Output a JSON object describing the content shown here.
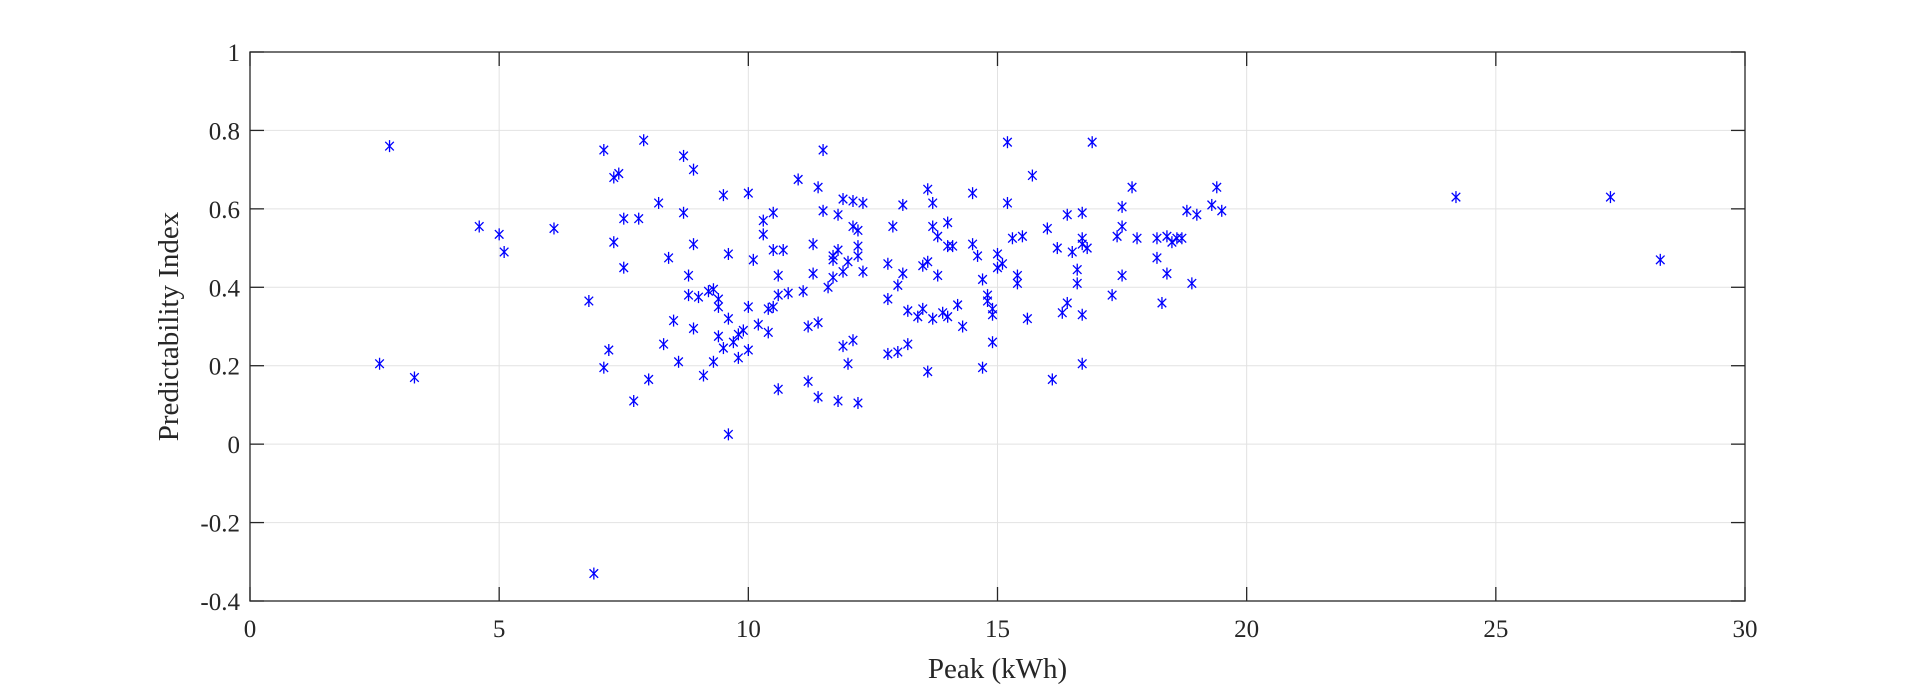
{
  "chart_data": {
    "type": "scatter",
    "title": "",
    "xlabel": "Peak (kWh)",
    "ylabel": "Predictability Index",
    "xlim": [
      0,
      30
    ],
    "ylim": [
      -0.4,
      1
    ],
    "xticks": [
      0,
      5,
      10,
      15,
      20,
      25,
      30
    ],
    "xtick_labels": [
      "0",
      "5",
      "10",
      "15",
      "20",
      "25",
      "30"
    ],
    "yticks": [
      -0.4,
      -0.2,
      0,
      0.2,
      0.4,
      0.6,
      0.8,
      1
    ],
    "ytick_labels": [
      "-0.4",
      "-0.2",
      "0",
      "0.2",
      "0.4",
      "0.6",
      "0.8",
      "1"
    ],
    "grid": true,
    "marker": "*",
    "marker_color": "#0000ff",
    "series": [
      {
        "points": [
          [
            2.6,
            0.205
          ],
          [
            2.8,
            0.76
          ],
          [
            3.3,
            0.17
          ],
          [
            4.6,
            0.555
          ],
          [
            5.0,
            0.535
          ],
          [
            5.1,
            0.49
          ],
          [
            6.1,
            0.55
          ],
          [
            6.8,
            0.365
          ],
          [
            6.9,
            -0.33
          ],
          [
            7.1,
            0.75
          ],
          [
            7.1,
            0.195
          ],
          [
            7.2,
            0.24
          ],
          [
            7.3,
            0.68
          ],
          [
            7.4,
            0.69
          ],
          [
            7.3,
            0.515
          ],
          [
            7.5,
            0.575
          ],
          [
            7.5,
            0.45
          ],
          [
            7.7,
            0.11
          ],
          [
            7.8,
            0.575
          ],
          [
            7.9,
            0.775
          ],
          [
            8.0,
            0.165
          ],
          [
            8.2,
            0.615
          ],
          [
            8.3,
            0.255
          ],
          [
            8.4,
            0.475
          ],
          [
            8.5,
            0.315
          ],
          [
            8.6,
            0.21
          ],
          [
            8.7,
            0.59
          ],
          [
            8.7,
            0.735
          ],
          [
            8.8,
            0.38
          ],
          [
            8.8,
            0.43
          ],
          [
            8.9,
            0.51
          ],
          [
            8.9,
            0.7
          ],
          [
            8.9,
            0.295
          ],
          [
            9.0,
            0.375
          ],
          [
            9.1,
            0.175
          ],
          [
            9.2,
            0.39
          ],
          [
            9.3,
            0.395
          ],
          [
            9.3,
            0.21
          ],
          [
            9.4,
            0.37
          ],
          [
            9.4,
            0.35
          ],
          [
            9.4,
            0.275
          ],
          [
            9.5,
            0.245
          ],
          [
            9.5,
            0.635
          ],
          [
            9.6,
            0.025
          ],
          [
            9.6,
            0.485
          ],
          [
            9.6,
            0.32
          ],
          [
            9.7,
            0.26
          ],
          [
            9.8,
            0.22
          ],
          [
            9.8,
            0.28
          ],
          [
            9.9,
            0.29
          ],
          [
            10.0,
            0.64
          ],
          [
            10.0,
            0.35
          ],
          [
            10.0,
            0.24
          ],
          [
            10.1,
            0.47
          ],
          [
            10.2,
            0.305
          ],
          [
            10.3,
            0.535
          ],
          [
            10.3,
            0.57
          ],
          [
            10.4,
            0.285
          ],
          [
            10.4,
            0.345
          ],
          [
            10.5,
            0.35
          ],
          [
            10.5,
            0.59
          ],
          [
            10.5,
            0.495
          ],
          [
            10.6,
            0.14
          ],
          [
            10.6,
            0.43
          ],
          [
            10.6,
            0.38
          ],
          [
            10.7,
            0.495
          ],
          [
            10.8,
            0.385
          ],
          [
            11.0,
            0.675
          ],
          [
            11.1,
            0.39
          ],
          [
            11.2,
            0.3
          ],
          [
            11.2,
            0.16
          ],
          [
            11.3,
            0.51
          ],
          [
            11.3,
            0.435
          ],
          [
            11.4,
            0.31
          ],
          [
            11.4,
            0.655
          ],
          [
            11.4,
            0.12
          ],
          [
            11.5,
            0.75
          ],
          [
            11.5,
            0.595
          ],
          [
            11.6,
            0.4
          ],
          [
            11.7,
            0.425
          ],
          [
            11.7,
            0.47
          ],
          [
            11.7,
            0.48
          ],
          [
            11.8,
            0.585
          ],
          [
            11.8,
            0.11
          ],
          [
            11.8,
            0.495
          ],
          [
            11.9,
            0.625
          ],
          [
            11.9,
            0.25
          ],
          [
            11.9,
            0.44
          ],
          [
            12.0,
            0.205
          ],
          [
            12.0,
            0.465
          ],
          [
            12.1,
            0.265
          ],
          [
            12.1,
            0.62
          ],
          [
            12.1,
            0.555
          ],
          [
            12.2,
            0.545
          ],
          [
            12.2,
            0.505
          ],
          [
            12.2,
            0.48
          ],
          [
            12.2,
            0.105
          ],
          [
            12.3,
            0.44
          ],
          [
            12.3,
            0.615
          ],
          [
            12.8,
            0.46
          ],
          [
            12.8,
            0.37
          ],
          [
            12.8,
            0.23
          ],
          [
            12.9,
            0.555
          ],
          [
            13.0,
            0.405
          ],
          [
            13.0,
            0.235
          ],
          [
            13.1,
            0.61
          ],
          [
            13.1,
            0.435
          ],
          [
            13.2,
            0.34
          ],
          [
            13.2,
            0.255
          ],
          [
            13.4,
            0.325
          ],
          [
            13.5,
            0.455
          ],
          [
            13.5,
            0.345
          ],
          [
            13.6,
            0.65
          ],
          [
            13.6,
            0.465
          ],
          [
            13.6,
            0.185
          ],
          [
            13.7,
            0.615
          ],
          [
            13.7,
            0.555
          ],
          [
            13.7,
            0.32
          ],
          [
            13.8,
            0.53
          ],
          [
            13.8,
            0.43
          ],
          [
            13.9,
            0.335
          ],
          [
            14.0,
            0.565
          ],
          [
            14.0,
            0.505
          ],
          [
            14.0,
            0.325
          ],
          [
            14.1,
            0.505
          ],
          [
            14.2,
            0.355
          ],
          [
            14.3,
            0.3
          ],
          [
            14.5,
            0.64
          ],
          [
            14.5,
            0.51
          ],
          [
            14.6,
            0.48
          ],
          [
            14.7,
            0.195
          ],
          [
            14.7,
            0.42
          ],
          [
            14.8,
            0.38
          ],
          [
            14.8,
            0.365
          ],
          [
            14.9,
            0.33
          ],
          [
            14.9,
            0.345
          ],
          [
            14.9,
            0.26
          ],
          [
            15.0,
            0.485
          ],
          [
            15.0,
            0.45
          ],
          [
            15.1,
            0.46
          ],
          [
            15.2,
            0.77
          ],
          [
            15.2,
            0.615
          ],
          [
            15.3,
            0.525
          ],
          [
            15.4,
            0.41
          ],
          [
            15.4,
            0.43
          ],
          [
            15.5,
            0.53
          ],
          [
            15.6,
            0.32
          ],
          [
            15.7,
            0.685
          ],
          [
            16.0,
            0.55
          ],
          [
            16.1,
            0.165
          ],
          [
            16.2,
            0.5
          ],
          [
            16.3,
            0.335
          ],
          [
            16.4,
            0.36
          ],
          [
            16.4,
            0.585
          ],
          [
            16.5,
            0.49
          ],
          [
            16.6,
            0.445
          ],
          [
            16.6,
            0.41
          ],
          [
            16.7,
            0.59
          ],
          [
            16.7,
            0.525
          ],
          [
            16.7,
            0.51
          ],
          [
            16.7,
            0.33
          ],
          [
            16.7,
            0.205
          ],
          [
            16.8,
            0.5
          ],
          [
            16.9,
            0.77
          ],
          [
            17.3,
            0.38
          ],
          [
            17.4,
            0.53
          ],
          [
            17.5,
            0.605
          ],
          [
            17.5,
            0.555
          ],
          [
            17.5,
            0.43
          ],
          [
            17.7,
            0.655
          ],
          [
            17.8,
            0.525
          ],
          [
            18.2,
            0.475
          ],
          [
            18.2,
            0.525
          ],
          [
            18.3,
            0.36
          ],
          [
            18.4,
            0.435
          ],
          [
            18.4,
            0.53
          ],
          [
            18.5,
            0.515
          ],
          [
            18.6,
            0.525
          ],
          [
            18.7,
            0.525
          ],
          [
            18.8,
            0.595
          ],
          [
            18.9,
            0.41
          ],
          [
            19.0,
            0.585
          ],
          [
            19.3,
            0.61
          ],
          [
            19.4,
            0.655
          ],
          [
            19.5,
            0.595
          ],
          [
            24.2,
            0.63
          ],
          [
            27.3,
            0.63
          ],
          [
            28.3,
            0.47
          ]
        ]
      }
    ]
  }
}
